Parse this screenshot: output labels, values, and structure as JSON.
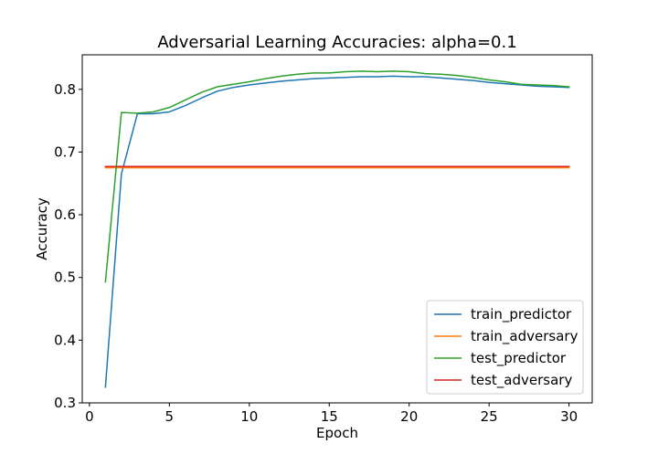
{
  "chart_data": {
    "type": "line",
    "title": "Adversarial Learning Accuracies: alpha=0.1",
    "xlabel": "Epoch",
    "ylabel": "Accuracy",
    "xlim": [
      -0.45,
      31.45
    ],
    "ylim": [
      0.3,
      0.855
    ],
    "xticks": [
      0,
      5,
      10,
      15,
      20,
      25,
      30
    ],
    "yticks": [
      0.3,
      0.4,
      0.5,
      0.6,
      0.7,
      0.8
    ],
    "xtick_labels": [
      "0",
      "5",
      "10",
      "15",
      "20",
      "25",
      "30"
    ],
    "ytick_labels": [
      "0.3",
      "0.4",
      "0.5",
      "0.6",
      "0.7",
      "0.8"
    ],
    "grid": false,
    "legend_position": "lower-right",
    "x": [
      1,
      2,
      3,
      4,
      5,
      6,
      7,
      8,
      9,
      10,
      11,
      12,
      13,
      14,
      15,
      16,
      17,
      18,
      19,
      20,
      21,
      22,
      23,
      24,
      25,
      26,
      27,
      28,
      29,
      30
    ],
    "series": [
      {
        "name": "train_predictor",
        "color": "#1f77b4",
        "values": [
          0.325,
          0.665,
          0.761,
          0.761,
          0.764,
          0.774,
          0.786,
          0.797,
          0.803,
          0.807,
          0.81,
          0.813,
          0.815,
          0.817,
          0.818,
          0.819,
          0.82,
          0.82,
          0.821,
          0.82,
          0.82,
          0.818,
          0.816,
          0.814,
          0.811,
          0.809,
          0.807,
          0.805,
          0.804,
          0.803
        ]
      },
      {
        "name": "train_adversary",
        "color": "#ff7f0e",
        "values": [
          0.675,
          0.675,
          0.675,
          0.675,
          0.675,
          0.675,
          0.675,
          0.675,
          0.675,
          0.675,
          0.675,
          0.675,
          0.675,
          0.675,
          0.675,
          0.675,
          0.675,
          0.675,
          0.675,
          0.675,
          0.675,
          0.675,
          0.675,
          0.675,
          0.675,
          0.675,
          0.675,
          0.675,
          0.675,
          0.675
        ]
      },
      {
        "name": "test_predictor",
        "color": "#2ca02c",
        "values": [
          0.493,
          0.763,
          0.762,
          0.764,
          0.771,
          0.783,
          0.795,
          0.804,
          0.808,
          0.812,
          0.817,
          0.821,
          0.824,
          0.826,
          0.826,
          0.828,
          0.829,
          0.828,
          0.829,
          0.828,
          0.825,
          0.824,
          0.822,
          0.819,
          0.815,
          0.812,
          0.808,
          0.807,
          0.806,
          0.804
        ]
      },
      {
        "name": "test_adversary",
        "color": "#d62728",
        "values": [
          0.677,
          0.677,
          0.677,
          0.677,
          0.677,
          0.677,
          0.677,
          0.677,
          0.677,
          0.677,
          0.677,
          0.677,
          0.677,
          0.677,
          0.677,
          0.677,
          0.677,
          0.677,
          0.677,
          0.677,
          0.677,
          0.677,
          0.677,
          0.677,
          0.677,
          0.677,
          0.677,
          0.677,
          0.677,
          0.677
        ]
      }
    ]
  }
}
